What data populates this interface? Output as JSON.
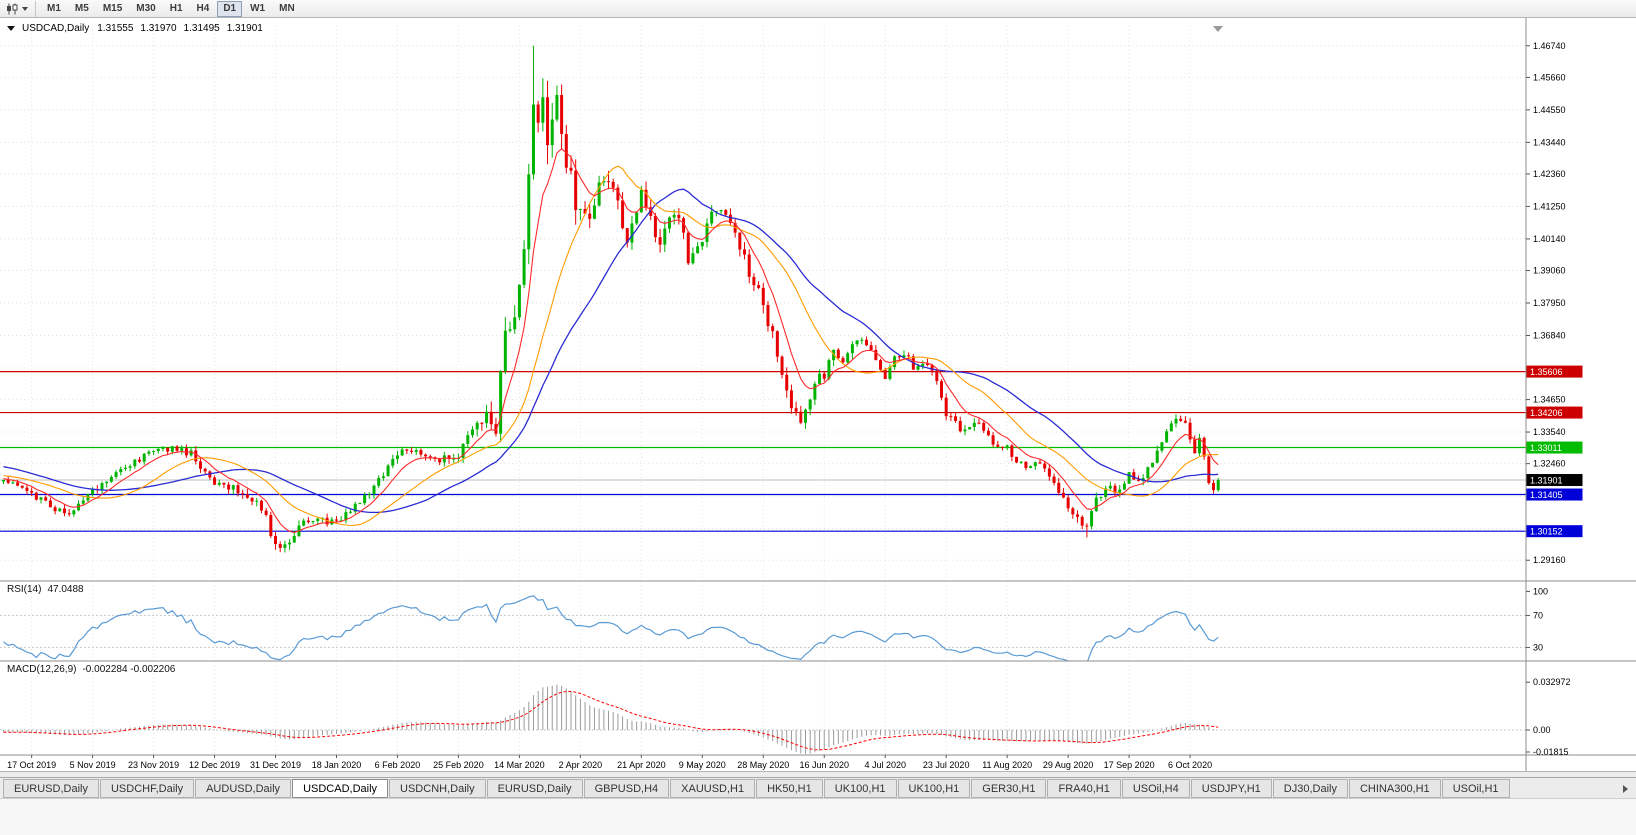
{
  "toolbar": {
    "timeframes": [
      "M1",
      "M5",
      "M15",
      "M30",
      "H1",
      "H4",
      "D1",
      "W1",
      "MN"
    ],
    "active_timeframe": "D1",
    "chart_type_icon": "candlestick-chart-icon"
  },
  "chart_header": {
    "symbol": "USDCAD,Daily",
    "open": "1.31555",
    "high": "1.31970",
    "low": "1.31495",
    "close": "1.31901"
  },
  "chart_data": {
    "type": "candlestick",
    "symbol": "USDCAD",
    "timeframe": "Daily",
    "colors": {
      "up": "#00b300",
      "down": "#e60000",
      "ma_fast": "#ff2a2a",
      "ma_mid": "#ff9c00",
      "ma_slow": "#2b2bd4",
      "rsi": "#5b9bd5",
      "macd_hist": "#9b9b9b",
      "macd_signal": "#ff0000",
      "grid": "#e2e2e2",
      "bid_line": "#a8a8a8"
    },
    "y_ticks": [
      "1.46740",
      "1.45660",
      "1.44550",
      "1.43440",
      "1.42360",
      "1.41250",
      "1.40140",
      "1.39060",
      "1.37950",
      "1.36840",
      "1.35730",
      "1.34650",
      "1.33540",
      "1.32460",
      "1.31350",
      "1.30240",
      "1.29160"
    ],
    "x_ticks": [
      "17 Oct 2019",
      "5 Nov 2019",
      "23 Nov 2019",
      "12 Dec 2019",
      "31 Dec 2019",
      "18 Jan 2020",
      "6 Feb 2020",
      "25 Feb 2020",
      "14 Mar 2020",
      "2 Apr 2020",
      "21 Apr 2020",
      "9 May 2020",
      "28 May 2020",
      "16 Jun 2020",
      "4 Jul 2020",
      "23 Jul 2020",
      "11 Aug 2020",
      "29 Aug 2020",
      "17 Sep 2020",
      "6 Oct 2020"
    ],
    "hlines": [
      {
        "price": 1.35606,
        "label": "1.35606",
        "color": "#cc0000"
      },
      {
        "price": 1.34206,
        "label": "1.34206",
        "color": "#cc0000"
      },
      {
        "price": 1.33011,
        "label": "1.33011",
        "color": "#00bb00"
      },
      {
        "price": 1.31405,
        "label": "1.31405",
        "color": "#0000d8"
      },
      {
        "price": 1.30152,
        "label": "1.30152",
        "color": "#0000d8"
      }
    ],
    "bid": {
      "price": 1.31901,
      "label": "1.31901"
    },
    "ohlc_last": {
      "o": 1.31555,
      "h": 1.3197,
      "l": 1.31495,
      "c": 1.31901
    },
    "candle_count": 260,
    "close_anchors": [
      [
        0,
        1.3185
      ],
      [
        4,
        1.316
      ],
      [
        6,
        1.314
      ],
      [
        10,
        1.31
      ],
      [
        14,
        1.307
      ],
      [
        19,
        1.315
      ],
      [
        24,
        1.321
      ],
      [
        29,
        1.326
      ],
      [
        32,
        1.329
      ],
      [
        36,
        1.33
      ],
      [
        40,
        1.328
      ],
      [
        45,
        1.3175
      ],
      [
        49,
        1.316
      ],
      [
        53,
        1.313
      ],
      [
        56,
        1.306
      ],
      [
        58,
        1.2965
      ],
      [
        61,
        1.299
      ],
      [
        64,
        1.3055
      ],
      [
        68,
        1.305
      ],
      [
        71,
        1.304
      ],
      [
        75,
        1.3105
      ],
      [
        79,
        1.317
      ],
      [
        84,
        1.328
      ],
      [
        88,
        1.329
      ],
      [
        92,
        1.325
      ],
      [
        97,
        1.328
      ],
      [
        100,
        1.338
      ],
      [
        103,
        1.342
      ],
      [
        105,
        1.336
      ],
      [
        107,
        1.37
      ],
      [
        109,
        1.375
      ],
      [
        111,
        1.395
      ],
      [
        112,
        1.42
      ],
      [
        113,
        1.449
      ],
      [
        114,
        1.445
      ],
      [
        115,
        1.451
      ],
      [
        116,
        1.435
      ],
      [
        118,
        1.448
      ],
      [
        120,
        1.43
      ],
      [
        122,
        1.415
      ],
      [
        123,
        1.413
      ],
      [
        125,
        1.408
      ],
      [
        127,
        1.418
      ],
      [
        129,
        1.423
      ],
      [
        131,
        1.412
      ],
      [
        133,
        1.4
      ],
      [
        135,
        1.409
      ],
      [
        136,
        1.419
      ],
      [
        138,
        1.409
      ],
      [
        140,
        1.398
      ],
      [
        142,
        1.408
      ],
      [
        144,
        1.409
      ],
      [
        146,
        1.394
      ],
      [
        148,
        1.398
      ],
      [
        149,
        1.4
      ],
      [
        151,
        1.41
      ],
      [
        153,
        1.413
      ],
      [
        155,
        1.406
      ],
      [
        157,
        1.398
      ],
      [
        159,
        1.39
      ],
      [
        161,
        1.383
      ],
      [
        162,
        1.378
      ],
      [
        164,
        1.368
      ],
      [
        166,
        1.356
      ],
      [
        168,
        1.342
      ],
      [
        170,
        1.339
      ],
      [
        172,
        1.347
      ],
      [
        174,
        1.354
      ],
      [
        175,
        1.355
      ],
      [
        177,
        1.362
      ],
      [
        179,
        1.358
      ],
      [
        181,
        1.365
      ],
      [
        183,
        1.368
      ],
      [
        185,
        1.362
      ],
      [
        187,
        1.357
      ],
      [
        188,
        1.3545
      ],
      [
        190,
        1.36
      ],
      [
        192,
        1.362
      ],
      [
        194,
        1.358
      ],
      [
        196,
        1.36
      ],
      [
        198,
        1.356
      ],
      [
        200,
        1.348
      ],
      [
        201,
        1.341
      ],
      [
        203,
        1.338
      ],
      [
        205,
        1.335
      ],
      [
        207,
        1.339
      ],
      [
        209,
        1.336
      ],
      [
        211,
        1.332
      ],
      [
        213,
        1.331
      ],
      [
        214,
        1.33
      ],
      [
        216,
        1.326
      ],
      [
        218,
        1.323
      ],
      [
        220,
        1.326
      ],
      [
        222,
        1.322
      ],
      [
        224,
        1.317
      ],
      [
        226,
        1.313
      ],
      [
        227,
        1.31
      ],
      [
        229,
        1.306
      ],
      [
        231,
        1.303
      ],
      [
        233,
        1.312
      ],
      [
        235,
        1.317
      ],
      [
        237,
        1.315
      ],
      [
        239,
        1.318
      ],
      [
        240,
        1.321
      ],
      [
        242,
        1.318
      ],
      [
        244,
        1.323
      ],
      [
        246,
        1.329
      ],
      [
        248,
        1.336
      ],
      [
        250,
        1.3405
      ],
      [
        252,
        1.3375
      ],
      [
        253,
        1.332
      ],
      [
        254,
        1.329
      ],
      [
        255,
        1.333
      ],
      [
        256,
        1.326
      ],
      [
        257,
        1.318
      ],
      [
        258,
        1.315
      ],
      [
        259,
        1.319
      ]
    ],
    "vol_anchors": [
      [
        0,
        0.0028
      ],
      [
        46,
        0.0028
      ],
      [
        58,
        0.0042
      ],
      [
        66,
        0.0028
      ],
      [
        96,
        0.0032
      ],
      [
        104,
        0.0065
      ],
      [
        110,
        0.0115
      ],
      [
        114,
        0.0135
      ],
      [
        118,
        0.0115
      ],
      [
        124,
        0.0085
      ],
      [
        131,
        0.0062
      ],
      [
        141,
        0.0052
      ],
      [
        151,
        0.0046
      ],
      [
        161,
        0.0052
      ],
      [
        166,
        0.0048
      ],
      [
        176,
        0.004
      ],
      [
        191,
        0.0033
      ],
      [
        206,
        0.003
      ],
      [
        221,
        0.0028
      ],
      [
        228,
        0.0038
      ],
      [
        236,
        0.0028
      ],
      [
        246,
        0.0032
      ],
      [
        256,
        0.0028
      ],
      [
        259,
        0.0024
      ]
    ],
    "pre_anchors": [
      [
        -40,
        1.323
      ],
      [
        -30,
        1.331
      ],
      [
        -20,
        1.324
      ],
      [
        -10,
        1.32
      ],
      [
        -1,
        1.319
      ]
    ],
    "extremes": [
      {
        "i": 113,
        "high": 1.4674
      },
      {
        "i": 58,
        "low": 1.2952
      },
      {
        "i": 231,
        "low": 1.2994
      }
    ],
    "ma_periods": {
      "fast": 8,
      "mid": 20,
      "slow": 34
    },
    "rsi": {
      "label": "RSI(14)",
      "value": "47.0488",
      "period": 14,
      "levels": [
        "100",
        "70",
        "30"
      ]
    },
    "macd": {
      "label": "MACD(12,26,9)",
      "value": "-0.002284 -0.002206",
      "fast": 12,
      "slow": 26,
      "signal": 9,
      "scale_labels": [
        "0.032972",
        "0.00",
        "-0.01815"
      ]
    }
  },
  "tabs": {
    "items": [
      "EURUSD,Daily",
      "USDCHF,Daily",
      "AUDUSD,Daily",
      "USDCAD,Daily",
      "USDCNH,Daily",
      "EURUSD,Daily",
      "GBPUSD,H4",
      "XAUUSD,H1",
      "HK50,H1",
      "UK100,H1",
      "UK100,H1",
      "GER30,H1",
      "FRA40,H1",
      "USOil,H4",
      "USDJPY,H1",
      "DJ30,Daily",
      "CHINA300,H1",
      "USOil,H1"
    ],
    "active_index": 3
  }
}
